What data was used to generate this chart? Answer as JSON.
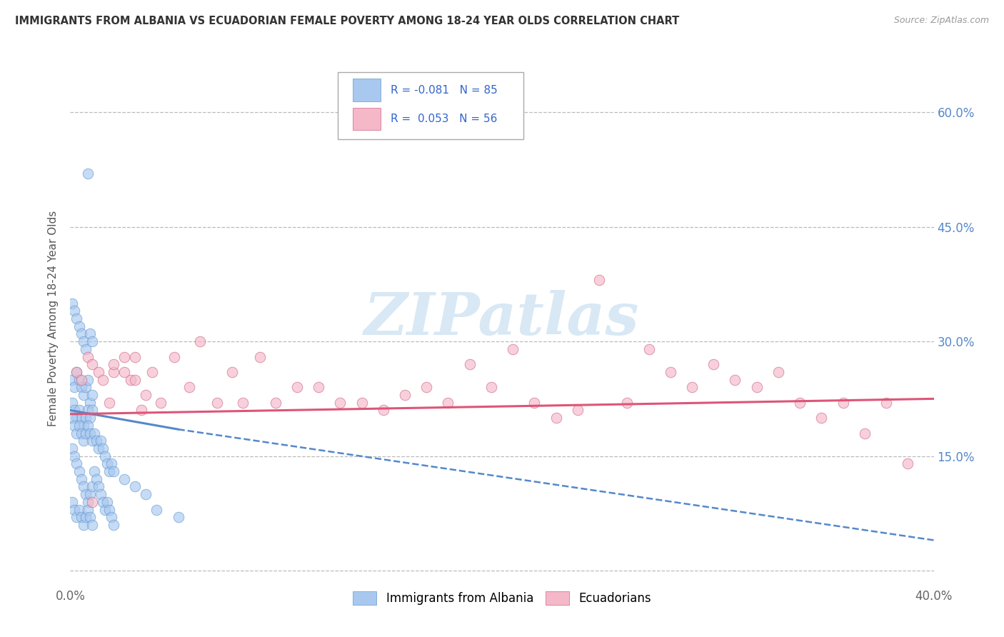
{
  "title": "IMMIGRANTS FROM ALBANIA VS ECUADORIAN FEMALE POVERTY AMONG 18-24 YEAR OLDS CORRELATION CHART",
  "source": "Source: ZipAtlas.com",
  "ylabel": "Female Poverty Among 18-24 Year Olds",
  "xlim": [
    0.0,
    0.4
  ],
  "ylim": [
    -0.02,
    0.68
  ],
  "xticks": [
    0.0,
    0.05,
    0.1,
    0.15,
    0.2,
    0.25,
    0.3,
    0.35,
    0.4
  ],
  "xtick_labels": [
    "0.0%",
    "",
    "",
    "",
    "",
    "",
    "",
    "",
    "40.0%"
  ],
  "ytick_positions": [
    0.0,
    0.15,
    0.3,
    0.45,
    0.6
  ],
  "ytick_labels_right": [
    "",
    "15.0%",
    "30.0%",
    "45.0%",
    "60.0%"
  ],
  "r_albania": -0.081,
  "n_albania": 85,
  "r_ecuador": 0.053,
  "n_ecuador": 56,
  "color_albania": "#a8c8f0",
  "color_ecuador": "#f5b8c8",
  "edge_albania": "#6699cc",
  "edge_ecuador": "#cc6688",
  "trendline_albania_color": "#5588cc",
  "trendline_ecuador_color": "#dd5577",
  "background_color": "#ffffff",
  "grid_color": "#bbbbbb",
  "albania_x": [
    0.008,
    0.001,
    0.002,
    0.003,
    0.004,
    0.005,
    0.006,
    0.007,
    0.009,
    0.01,
    0.001,
    0.002,
    0.003,
    0.004,
    0.005,
    0.006,
    0.007,
    0.008,
    0.009,
    0.01,
    0.001,
    0.002,
    0.003,
    0.004,
    0.005,
    0.006,
    0.007,
    0.008,
    0.009,
    0.01,
    0.001,
    0.002,
    0.003,
    0.004,
    0.005,
    0.006,
    0.007,
    0.008,
    0.009,
    0.01,
    0.001,
    0.002,
    0.003,
    0.004,
    0.005,
    0.006,
    0.007,
    0.008,
    0.009,
    0.01,
    0.001,
    0.002,
    0.003,
    0.004,
    0.005,
    0.006,
    0.007,
    0.008,
    0.009,
    0.01,
    0.011,
    0.012,
    0.013,
    0.014,
    0.015,
    0.016,
    0.017,
    0.018,
    0.019,
    0.02,
    0.011,
    0.012,
    0.013,
    0.014,
    0.015,
    0.016,
    0.017,
    0.018,
    0.019,
    0.02,
    0.025,
    0.03,
    0.035,
    0.04,
    0.05
  ],
  "albania_y": [
    0.52,
    0.35,
    0.34,
    0.33,
    0.32,
    0.31,
    0.3,
    0.29,
    0.31,
    0.3,
    0.25,
    0.24,
    0.26,
    0.25,
    0.24,
    0.23,
    0.24,
    0.25,
    0.22,
    0.23,
    0.22,
    0.21,
    0.2,
    0.21,
    0.2,
    0.19,
    0.2,
    0.21,
    0.2,
    0.21,
    0.2,
    0.19,
    0.18,
    0.19,
    0.18,
    0.17,
    0.18,
    0.19,
    0.18,
    0.17,
    0.16,
    0.15,
    0.14,
    0.13,
    0.12,
    0.11,
    0.1,
    0.09,
    0.1,
    0.11,
    0.09,
    0.08,
    0.07,
    0.08,
    0.07,
    0.06,
    0.07,
    0.08,
    0.07,
    0.06,
    0.18,
    0.17,
    0.16,
    0.17,
    0.16,
    0.15,
    0.14,
    0.13,
    0.14,
    0.13,
    0.13,
    0.12,
    0.11,
    0.1,
    0.09,
    0.08,
    0.09,
    0.08,
    0.07,
    0.06,
    0.12,
    0.11,
    0.1,
    0.08,
    0.07
  ],
  "ecuador_x": [
    0.003,
    0.005,
    0.008,
    0.01,
    0.013,
    0.015,
    0.018,
    0.02,
    0.025,
    0.028,
    0.03,
    0.033,
    0.038,
    0.042,
    0.048,
    0.055,
    0.06,
    0.068,
    0.075,
    0.08,
    0.088,
    0.095,
    0.105,
    0.115,
    0.125,
    0.135,
    0.145,
    0.155,
    0.165,
    0.175,
    0.185,
    0.195,
    0.205,
    0.215,
    0.225,
    0.235,
    0.245,
    0.258,
    0.268,
    0.278,
    0.288,
    0.298,
    0.308,
    0.318,
    0.328,
    0.338,
    0.348,
    0.358,
    0.368,
    0.378,
    0.388,
    0.01,
    0.02,
    0.025,
    0.03,
    0.035
  ],
  "ecuador_y": [
    0.26,
    0.25,
    0.28,
    0.27,
    0.26,
    0.25,
    0.22,
    0.26,
    0.28,
    0.25,
    0.28,
    0.21,
    0.26,
    0.22,
    0.28,
    0.24,
    0.3,
    0.22,
    0.26,
    0.22,
    0.28,
    0.22,
    0.24,
    0.24,
    0.22,
    0.22,
    0.21,
    0.23,
    0.24,
    0.22,
    0.27,
    0.24,
    0.29,
    0.22,
    0.2,
    0.21,
    0.38,
    0.22,
    0.29,
    0.26,
    0.24,
    0.27,
    0.25,
    0.24,
    0.26,
    0.22,
    0.2,
    0.22,
    0.18,
    0.22,
    0.14,
    0.09,
    0.27,
    0.26,
    0.25,
    0.23
  ],
  "trendline_albania_x0": 0.0,
  "trendline_albania_y0": 0.21,
  "trendline_albania_x1": 0.05,
  "trendline_albania_y1": 0.185,
  "trendline_albania_dashed_x1": 0.4,
  "trendline_albania_dashed_y1": 0.04,
  "trendline_ecuador_x0": 0.0,
  "trendline_ecuador_y0": 0.205,
  "trendline_ecuador_x1": 0.4,
  "trendline_ecuador_y1": 0.225,
  "legend_r1": "R = -0.081",
  "legend_n1": "N = 85",
  "legend_r2": "R =  0.053",
  "legend_n2": "N = 56",
  "watermark_text": "ZIPatlas",
  "watermark_color": "#c8dff0",
  "bottom_label1": "Immigrants from Albania",
  "bottom_label2": "Ecuadorians"
}
